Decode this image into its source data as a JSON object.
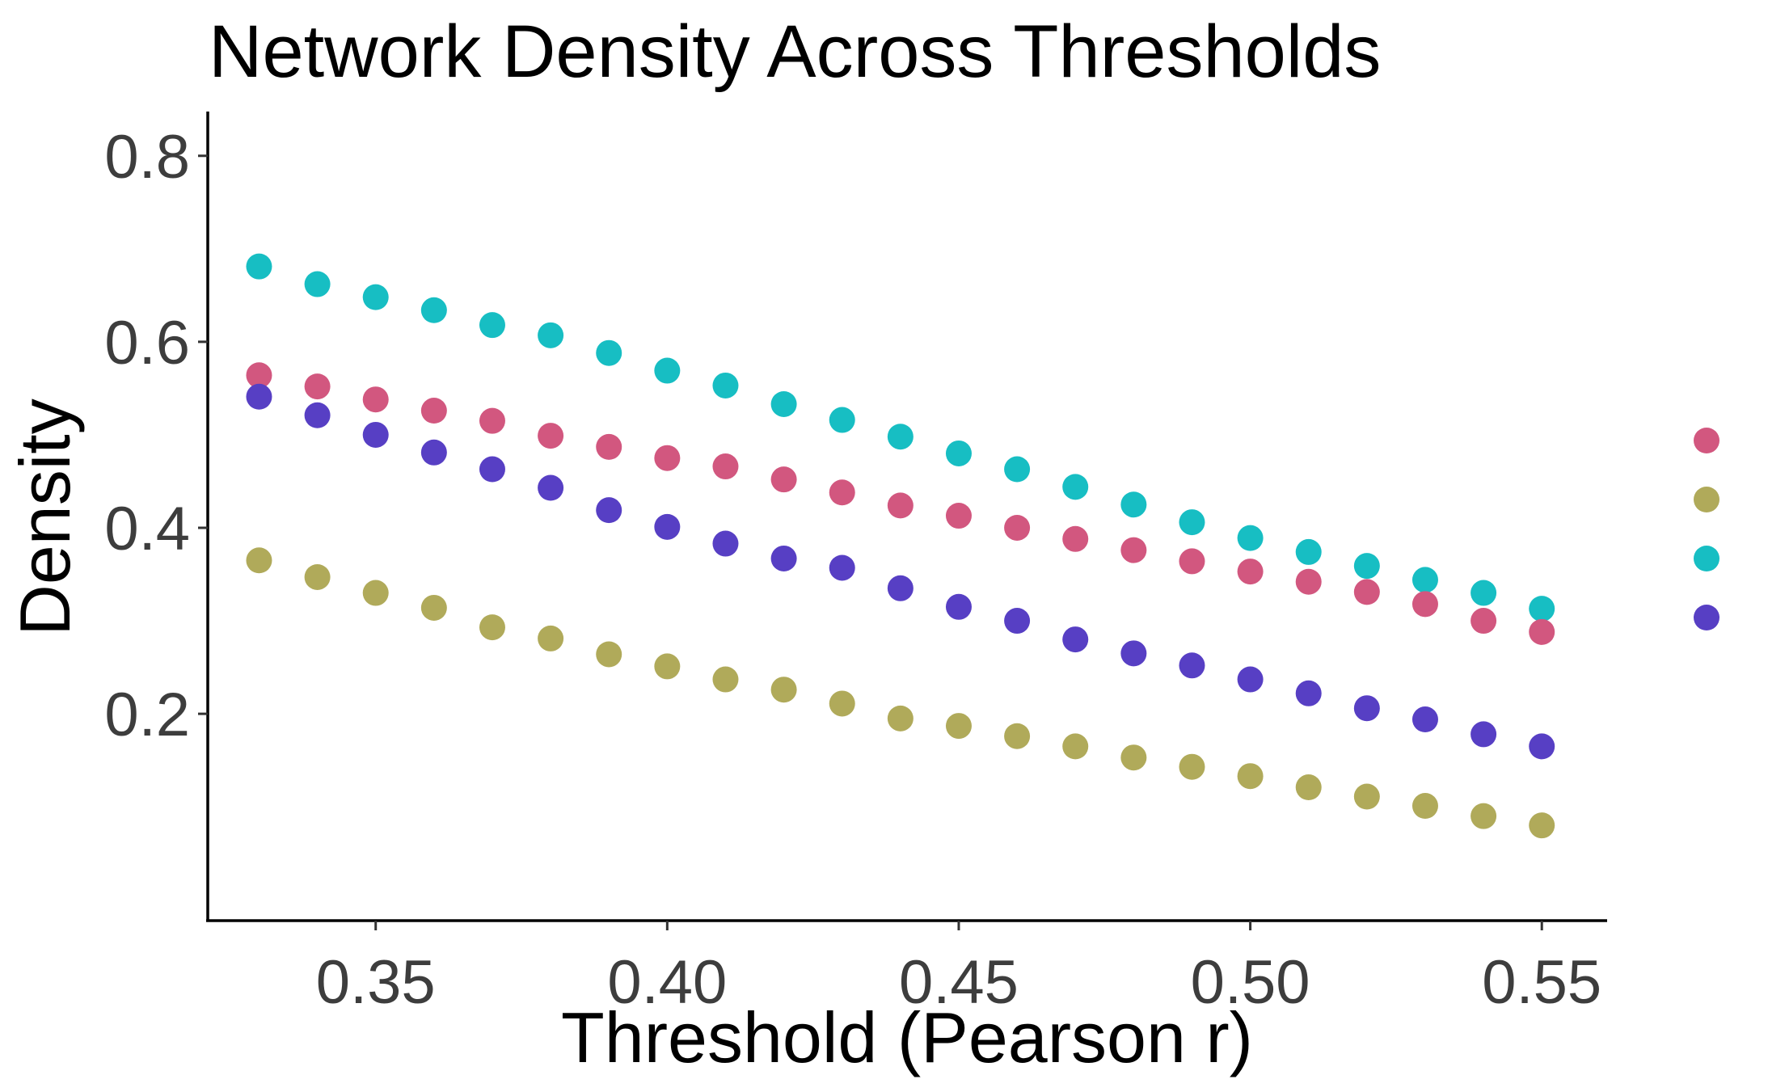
{
  "chart_data": {
    "type": "scatter",
    "title": "Network Density Across Thresholds",
    "xlabel": "Threshold (Pearson r)",
    "ylabel": "Density",
    "xlim": [
      0.3212,
      0.5612
    ],
    "ylim": [
      -0.0224,
      0.8476
    ],
    "xticks": [
      0.35,
      0.4,
      0.45,
      0.5,
      0.55
    ],
    "xtick_labels": [
      "0.35",
      "0.40",
      "0.45",
      "0.50",
      "0.55"
    ],
    "yticks": [
      0.2,
      0.4,
      0.6,
      0.8
    ],
    "ytick_labels": [
      "0.2",
      "0.4",
      "0.6",
      "0.8"
    ],
    "grid": false,
    "legend": "none",
    "x": [
      0.33,
      0.34,
      0.35,
      0.36,
      0.37,
      0.38,
      0.39,
      0.4,
      0.41,
      0.42,
      0.43,
      0.44,
      0.45,
      0.46,
      0.47,
      0.48,
      0.49,
      0.5,
      0.51,
      0.52,
      0.53,
      0.54,
      0.55
    ],
    "series": [
      {
        "color": "#17bec3",
        "values": [
          0.681,
          0.662,
          0.648,
          0.634,
          0.618,
          0.607,
          0.588,
          0.569,
          0.553,
          0.533,
          0.516,
          0.498,
          0.48,
          0.463,
          0.444,
          0.425,
          0.406,
          0.389,
          0.374,
          0.359,
          0.344,
          0.33,
          0.313
        ]
      },
      {
        "color": "#d2577f",
        "values": [
          0.564,
          0.552,
          0.538,
          0.526,
          0.515,
          0.499,
          0.487,
          0.475,
          0.466,
          0.452,
          0.438,
          0.424,
          0.413,
          0.4,
          0.388,
          0.376,
          0.364,
          0.353,
          0.342,
          0.331,
          0.318,
          0.3,
          0.288
        ]
      },
      {
        "color": "#573fc4",
        "values": [
          0.541,
          0.521,
          0.5,
          0.481,
          0.463,
          0.443,
          0.419,
          0.401,
          0.383,
          0.367,
          0.357,
          0.335,
          0.315,
          0.3,
          0.28,
          0.265,
          0.252,
          0.237,
          0.222,
          0.206,
          0.194,
          0.178,
          0.165
        ]
      },
      {
        "color": "#b0aa5a",
        "values": [
          0.365,
          0.347,
          0.33,
          0.314,
          0.293,
          0.281,
          0.264,
          0.251,
          0.237,
          0.226,
          0.211,
          0.195,
          0.187,
          0.176,
          0.165,
          0.153,
          0.143,
          0.133,
          0.121,
          0.111,
          0.101,
          0.09,
          0.08
        ]
      }
    ]
  }
}
